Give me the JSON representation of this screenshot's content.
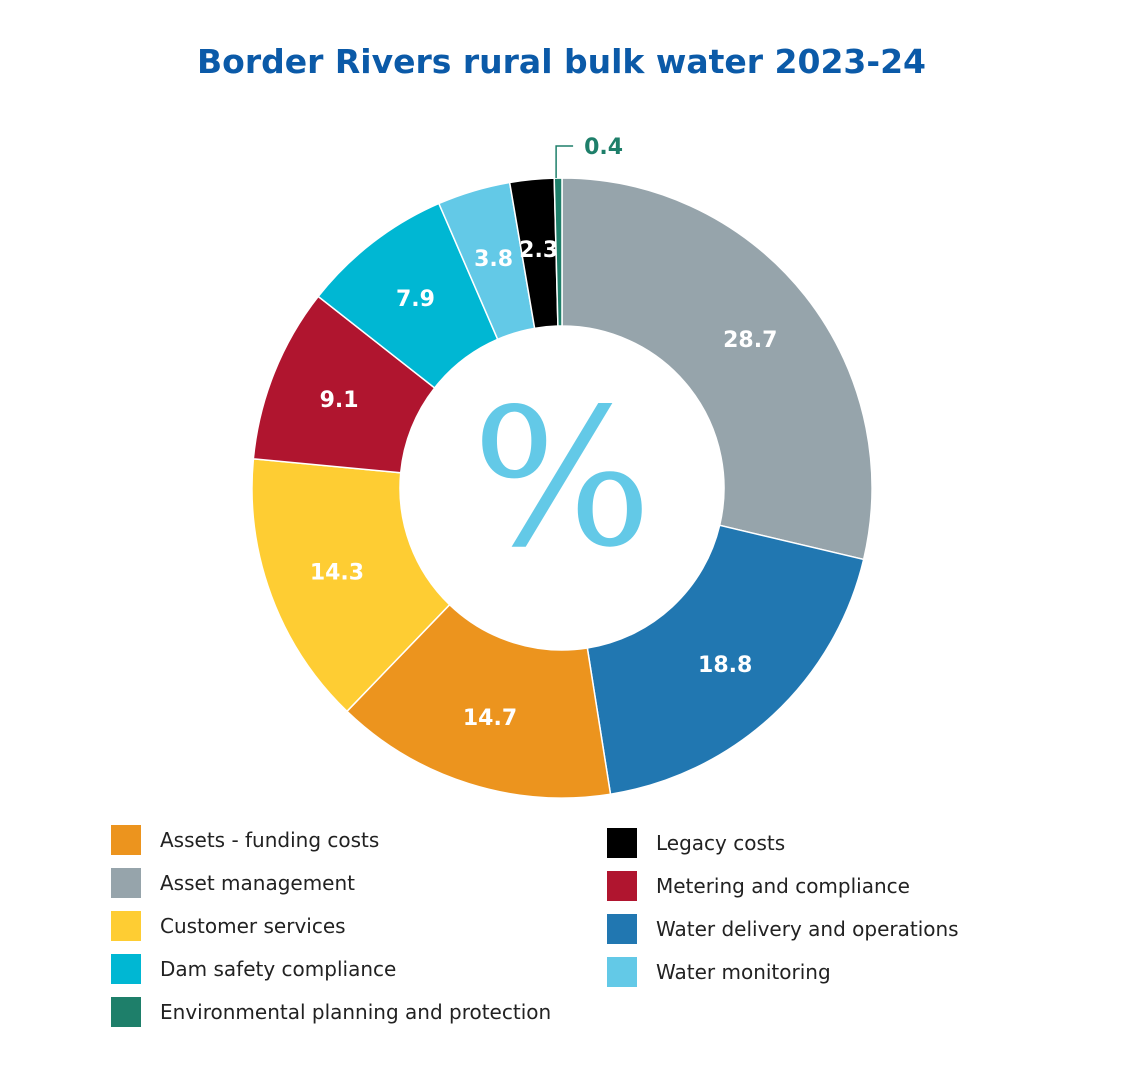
{
  "chart_data": {
    "type": "pie",
    "title": "Border Rivers rural bulk water 2023-24",
    "center_symbol": "%",
    "slices": [
      {
        "label": "Asset management",
        "value": 28.7,
        "display": "28.7",
        "color": "#96a4ab"
      },
      {
        "label": "Water delivery and operations",
        "value": 18.8,
        "display": "18.8",
        "color": "#2177b1"
      },
      {
        "label": "Assets - funding costs",
        "value": 14.7,
        "display": "14.7",
        "color": "#ec941e"
      },
      {
        "label": "Customer services",
        "value": 14.3,
        "display": "14.3",
        "color": "#fecd33"
      },
      {
        "label": "Metering and compliance",
        "value": 9.1,
        "display": "9.1",
        "color": "#b0152f"
      },
      {
        "label": "Dam safety compliance",
        "value": 7.9,
        "display": "7.9",
        "color": "#00b7d3"
      },
      {
        "label": "Water monitoring",
        "value": 3.8,
        "display": "3.8",
        "color": "#63c9e7"
      },
      {
        "label": "Legacy costs",
        "value": 2.3,
        "display": "2.3",
        "color": "#000000"
      },
      {
        "label": "Environmental planning and protection",
        "value": 0.4,
        "display": "0.4",
        "color": "#1e7f6a"
      }
    ],
    "legend": [
      {
        "label": "Assets - funding costs",
        "color": "#ec941e"
      },
      {
        "label": "Asset management",
        "color": "#96a4ab"
      },
      {
        "label": "Customer services",
        "color": "#fecd33"
      },
      {
        "label": "Dam safety compliance",
        "color": "#00b7d3"
      },
      {
        "label": "Environmental planning and protection",
        "color": "#1e7f6a"
      },
      {
        "label": "Legacy costs",
        "color": "#000000"
      },
      {
        "label": "Metering and compliance",
        "color": "#b0152f"
      },
      {
        "label": "Water delivery and operations",
        "color": "#2177b1"
      },
      {
        "label": "Water monitoring",
        "color": "#63c9e7"
      }
    ]
  }
}
